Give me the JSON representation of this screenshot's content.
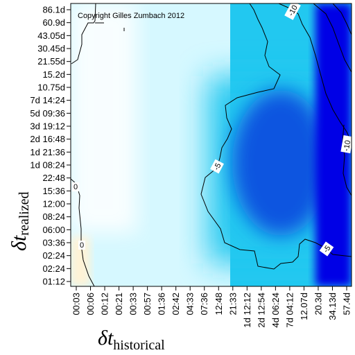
{
  "chart_data": {
    "type": "heatmap",
    "title": "",
    "annotation": "Copyright Gilles Zumbach 2012",
    "xlabel": {
      "main": "δt",
      "sub": "historical"
    },
    "ylabel": {
      "main": "δt",
      "sub": "realized"
    },
    "x_ticks": [
      "00:03",
      "00:06",
      "00:12",
      "00:21",
      "00:33",
      "00:57",
      "01:36",
      "02:42",
      "04:33",
      "07:36",
      "12:48",
      "21:33",
      "1d 12:12",
      "2d 12:54",
      "4d 06:24",
      "7d 04:12",
      "12.07d",
      "20.3d",
      "34.13d",
      "57.4d"
    ],
    "y_ticks": [
      "86.1d",
      "60.9d",
      "43.05d",
      "30.45d",
      "21.55d",
      "15.2d",
      "10.75d",
      "7d 14:24",
      "5d 09:36",
      "3d 19:12",
      "2d 16:48",
      "1d 21:36",
      "1d 08:24",
      "22:48",
      "15:36",
      "12:00",
      "08:24",
      "06:00",
      "03:36",
      "02:24",
      "02:24",
      "01:12"
    ],
    "contour_labels": [
      "-10",
      "-10",
      "-5",
      "-5",
      "0",
      "0"
    ],
    "colors": {
      "positive": "#fff3d6",
      "zero": "#ffffff",
      "light": "#d6f8ff",
      "mid": "#22c8f0",
      "deep": "#0f55e0",
      "darkest": "#0000e6"
    }
  }
}
